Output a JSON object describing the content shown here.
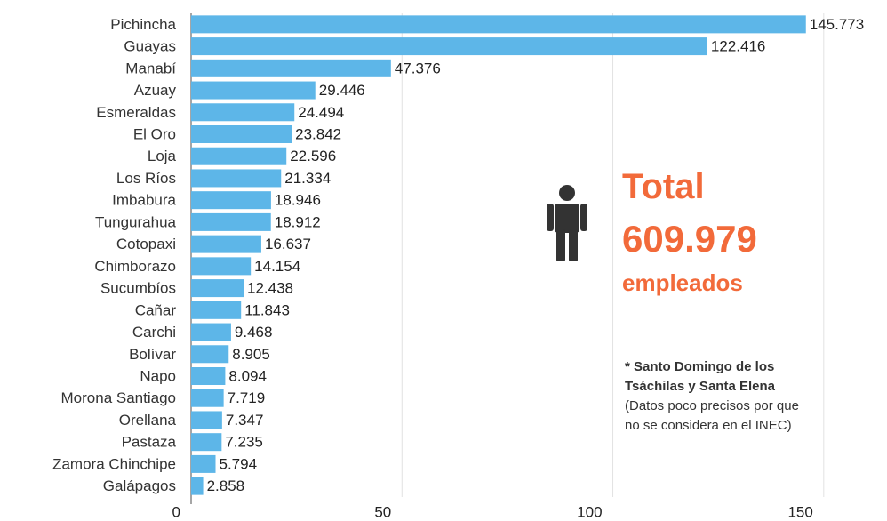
{
  "chart_data": {
    "type": "hbar",
    "categories": [
      "Pichincha",
      "Guayas",
      "Manabí",
      "Azuay",
      "Esmeraldas",
      "El Oro",
      "Loja",
      "Los Ríos",
      "Imbabura",
      "Tungurahua",
      "Cotopaxi",
      "Chimborazo",
      "Sucumbíos",
      "Cañar",
      "Carchi",
      "Bolívar",
      "Napo",
      "Morona Santiago",
      "Orellana",
      "Pastaza",
      "Zamora Chinchipe",
      "Galápagos"
    ],
    "values": [
      145.773,
      122.416,
      47.376,
      29.446,
      24.494,
      23.842,
      22.596,
      21.334,
      18.946,
      18.912,
      16.637,
      14.154,
      12.438,
      11.843,
      9.468,
      8.905,
      8.094,
      7.719,
      7.347,
      7.235,
      5.794,
      2.858
    ],
    "color": "#5db6e8",
    "xlim": [
      0,
      165
    ],
    "xticks": [
      0,
      50,
      100,
      150
    ],
    "grid": true,
    "annotations": {
      "total_label": "Total",
      "total_value": "609.979",
      "total_unit": "empleados",
      "note_bold": "* Santo Domingo de los Tsáchilas y Santa Elena",
      "note_text": "(Datos poco precisos por que no se considera en el INEC)"
    }
  }
}
